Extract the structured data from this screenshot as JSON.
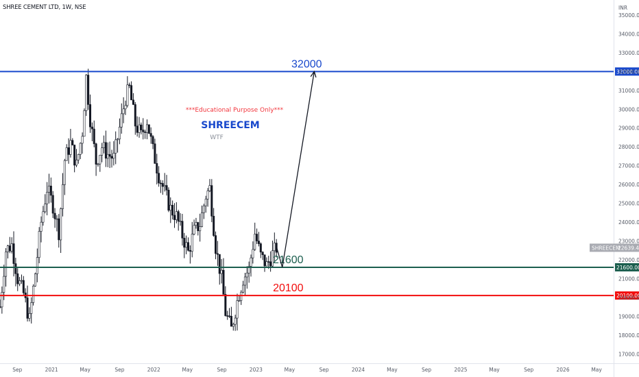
{
  "header": {
    "title": "SHREE CEMENT LTD, 1W, NSE"
  },
  "colors": {
    "candle": "#131722",
    "resistance": "#1848cc",
    "support": "#1b5e4e",
    "stop": "#f20c0c",
    "note": "#f2363d",
    "symbol_text": "#1848cc",
    "subtitle": "#8a8f99",
    "price_tag": "#a9abb2"
  },
  "annotations": {
    "note": "***Educational Purpose Only***",
    "symbol": "SHREECEM",
    "subtitle": "WTF"
  },
  "price_tag": {
    "symbol": "SHREECEM",
    "price": "22639.45"
  },
  "chart_data": {
    "type": "candlestick",
    "symbol": "SHREE CEMENT LTD",
    "interval": "1W",
    "exchange": "NSE",
    "currency": "INR",
    "ylim": [
      16500,
      35800
    ],
    "y_ticks": [
      "35000.00",
      "34000.00",
      "33000.00",
      "32000.00",
      "31000.00",
      "30000.00",
      "29000.00",
      "28000.00",
      "27000.00",
      "26000.00",
      "25000.00",
      "24000.00",
      "23000.00",
      "22000.00",
      "21000.00",
      "20000.00",
      "19000.00",
      "18000.00",
      "17000.00"
    ],
    "x_ticks": [
      "Sep",
      "2021",
      "May",
      "Sep",
      "2022",
      "May",
      "Sep",
      "2023",
      "May",
      "Sep",
      "2024",
      "May",
      "Sep",
      "2025",
      "May",
      "Sep",
      "2026",
      "May"
    ],
    "x_tick_dates": [
      "2020-09-01",
      "2021-01-01",
      "2021-05-01",
      "2021-09-01",
      "2022-01-01",
      "2022-05-01",
      "2022-09-01",
      "2023-01-01",
      "2023-05-01",
      "2023-09-01",
      "2024-01-01",
      "2024-05-01",
      "2024-09-01",
      "2025-01-01",
      "2025-05-01",
      "2025-09-01",
      "2026-01-01",
      "2026-05-01"
    ],
    "x_range": [
      "2020-07-01",
      "2026-07-01"
    ],
    "price_path": [
      [
        "2020-07-01",
        19500
      ],
      [
        "2020-07-22",
        22500
      ],
      [
        "2020-08-12",
        22800
      ],
      [
        "2020-09-02",
        21000
      ],
      [
        "2020-09-23",
        20200
      ],
      [
        "2020-10-14",
        18800
      ],
      [
        "2020-11-04",
        21300
      ],
      [
        "2020-11-25",
        24000
      ],
      [
        "2020-12-16",
        25800
      ],
      [
        "2021-01-06",
        24900
      ],
      [
        "2021-01-27",
        23500
      ],
      [
        "2021-02-17",
        27300
      ],
      [
        "2021-03-10",
        28200
      ],
      [
        "2021-03-31",
        27000
      ],
      [
        "2021-04-21",
        28800
      ],
      [
        "2021-05-05",
        31700
      ],
      [
        "2021-05-19",
        29500
      ],
      [
        "2021-06-09",
        27200
      ],
      [
        "2021-06-30",
        28000
      ],
      [
        "2021-07-21",
        27600
      ],
      [
        "2021-08-11",
        27400
      ],
      [
        "2021-09-01",
        29000
      ],
      [
        "2021-09-22",
        30600
      ],
      [
        "2021-10-06",
        31100
      ],
      [
        "2021-10-27",
        29200
      ],
      [
        "2021-11-17",
        28600
      ],
      [
        "2021-12-08",
        29400
      ],
      [
        "2021-12-29",
        27800
      ],
      [
        "2022-01-19",
        26500
      ],
      [
        "2022-02-09",
        25600
      ],
      [
        "2022-03-02",
        24700
      ],
      [
        "2022-03-23",
        24300
      ],
      [
        "2022-04-13",
        23300
      ],
      [
        "2022-05-04",
        22400
      ],
      [
        "2022-05-25",
        23500
      ],
      [
        "2022-06-15",
        23900
      ],
      [
        "2022-07-06",
        25400
      ],
      [
        "2022-07-20",
        25800
      ],
      [
        "2022-08-10",
        22700
      ],
      [
        "2022-08-31",
        21000
      ],
      [
        "2022-09-14",
        19200
      ],
      [
        "2022-10-05",
        18300
      ],
      [
        "2022-10-26",
        19800
      ],
      [
        "2022-11-16",
        21000
      ],
      [
        "2022-12-07",
        21500
      ],
      [
        "2022-12-28",
        23400
      ],
      [
        "2023-01-18",
        22200
      ],
      [
        "2023-02-08",
        21700
      ],
      [
        "2023-03-01",
        22300
      ],
      [
        "2023-03-15",
        22639
      ]
    ],
    "projection": {
      "points": [
        [
          "2023-03-15",
          22700
        ],
        [
          "2023-04-05",
          21600
        ],
        [
          "2023-07-28",
          32000
        ]
      ],
      "label_dates": {
        "21600": "2023-04-26",
        "20100": "2023-04-26",
        "32000": "2023-07-01"
      }
    },
    "levels": [
      {
        "label": "32000",
        "value": 32000,
        "tag": "32000.00",
        "color": "#1848cc"
      },
      {
        "label": "21600",
        "value": 21600,
        "tag": "21600.00",
        "color": "#1b5e4e"
      },
      {
        "label": "20100",
        "value": 20100,
        "tag": "20100.00",
        "color": "#f20c0c"
      }
    ],
    "last_price": 22639.45
  }
}
